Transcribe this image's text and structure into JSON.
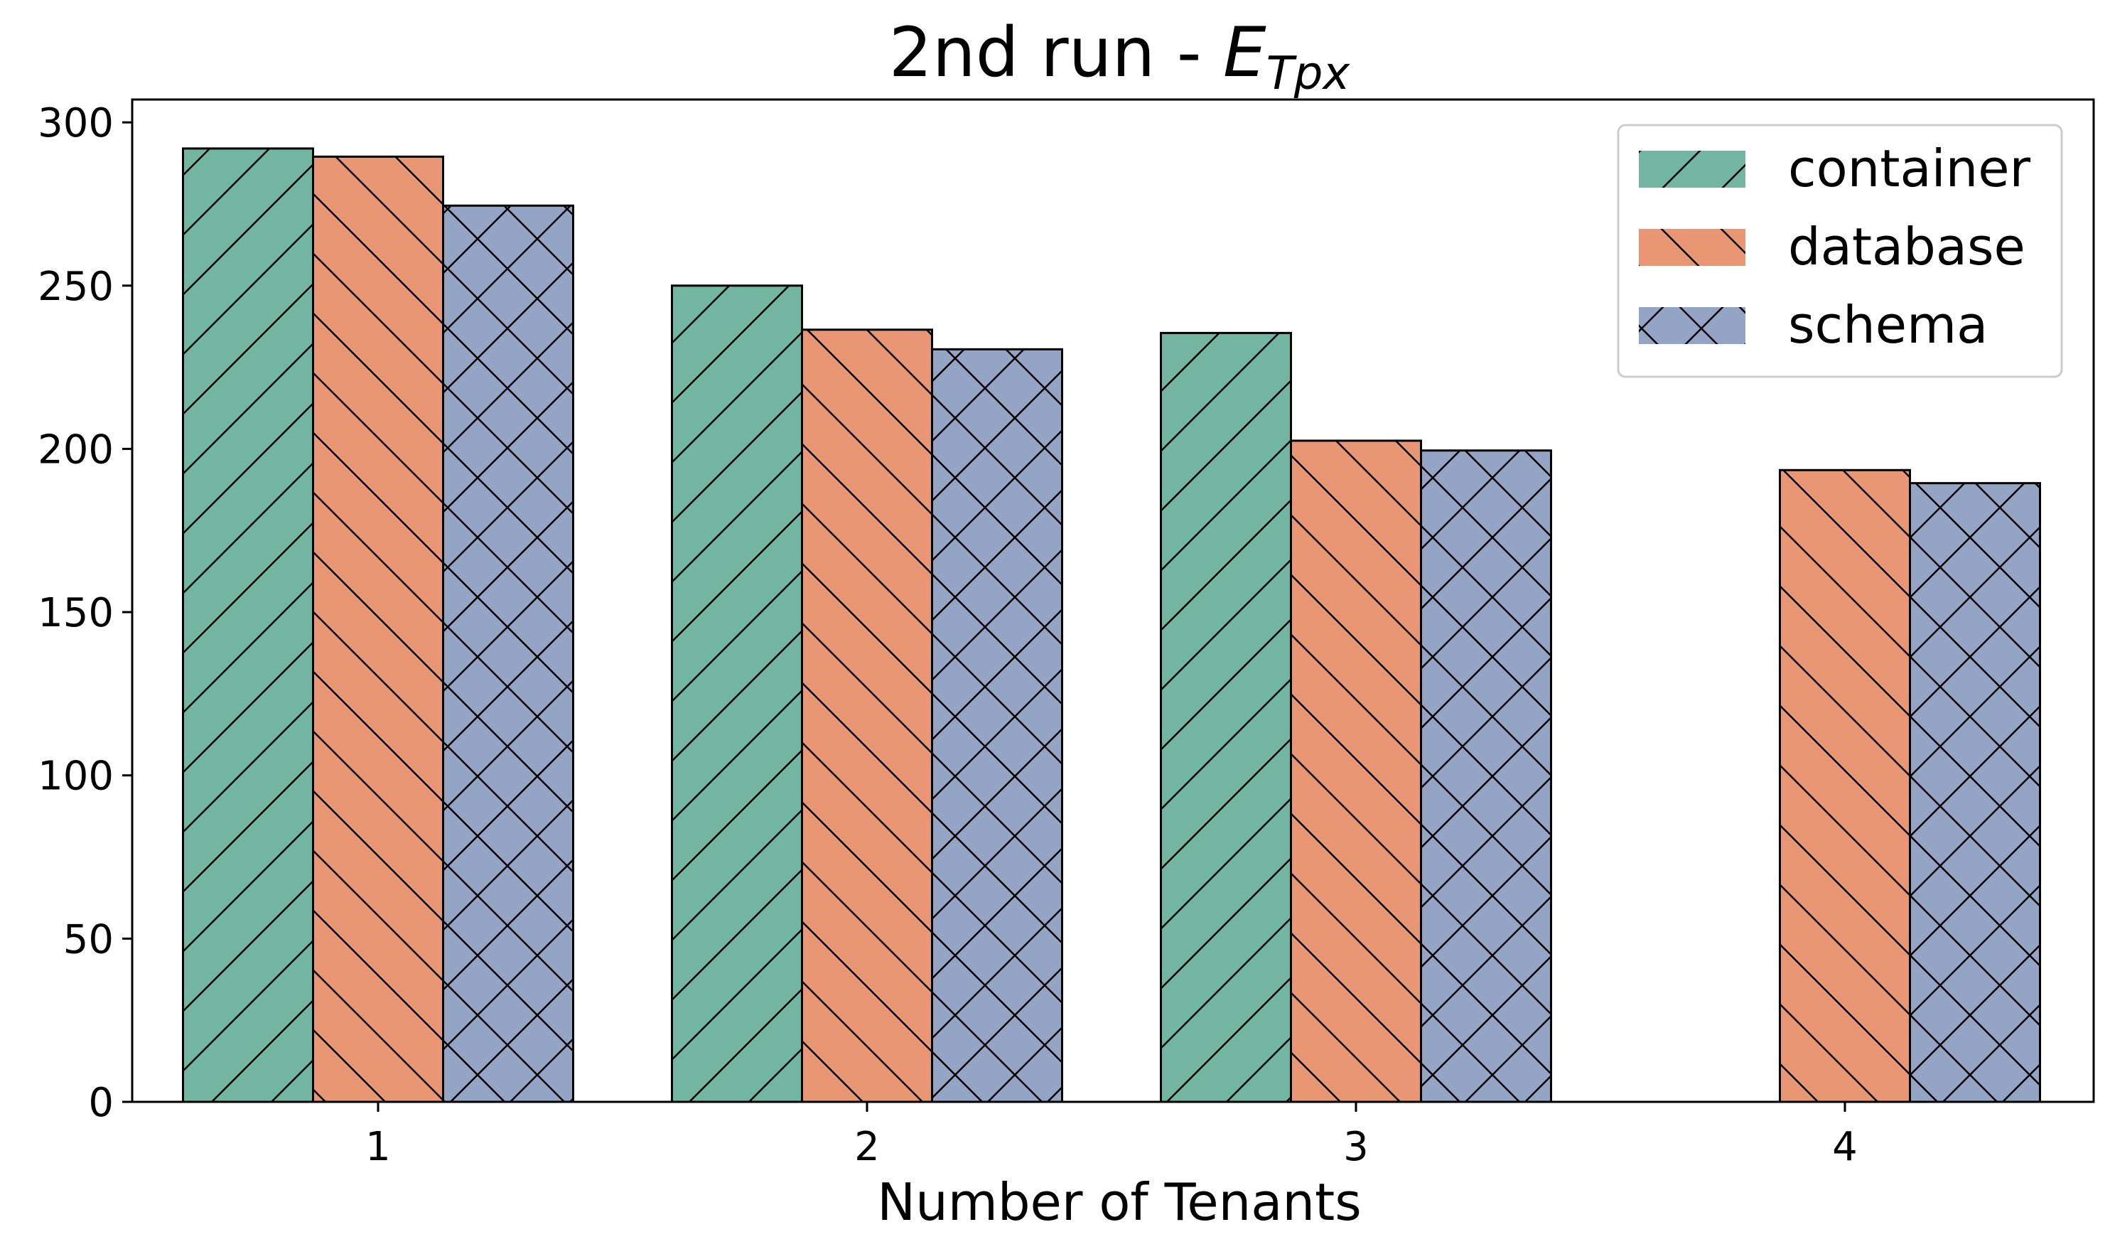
{
  "chart_data": {
    "type": "bar",
    "title": "2nd run - ",
    "title_math": "E",
    "title_math_sub": "Tpx",
    "xlabel": "Number of Tenants",
    "ylabel": "",
    "categories": [
      "1",
      "2",
      "3",
      "4"
    ],
    "ylim": [
      0,
      307
    ],
    "yticks": [
      "0",
      "50",
      "100",
      "150",
      "200",
      "250",
      "300"
    ],
    "grid": false,
    "legend_position": "top-right",
    "series": [
      {
        "name": "container",
        "values": [
          292,
          250,
          235.5,
          null
        ],
        "color": "#72b5a0",
        "hatch": "forward-diagonal"
      },
      {
        "name": "database",
        "values": [
          289.5,
          236.5,
          202.5,
          193.5
        ],
        "color": "#e99674",
        "hatch": "back-diagonal"
      },
      {
        "name": "schema",
        "values": [
          274.5,
          230.5,
          199.5,
          189.5
        ],
        "color": "#94a4c4",
        "hatch": "cross"
      }
    ]
  }
}
